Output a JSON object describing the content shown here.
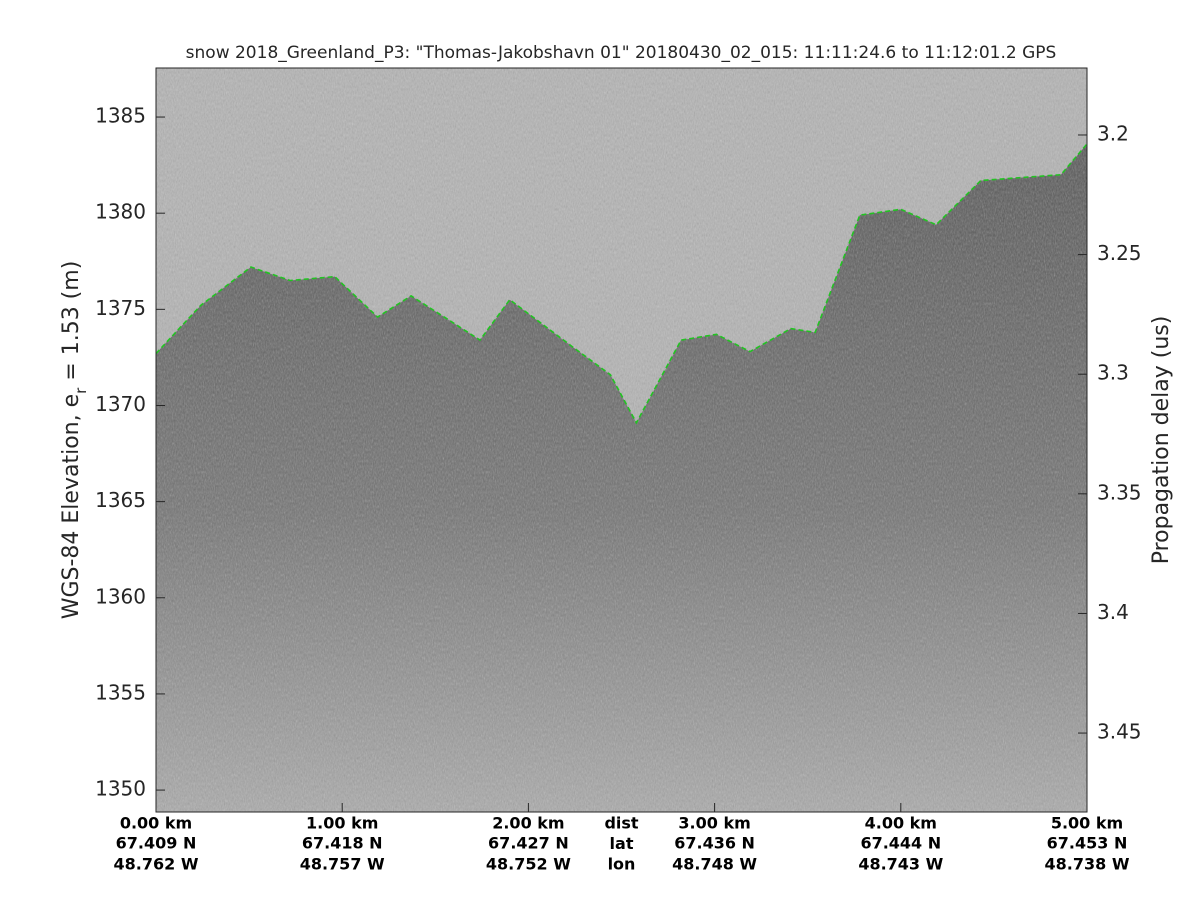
{
  "chart_data": {
    "type": "echogram",
    "title": "snow 2018_Greenland_P3: \"Thomas-Jakobshavn 01\"  20180430_02_015: 11:11:24.6 to 11:12:01.2 GPS",
    "ylabel": {
      "text": "WGS-84 Elevation, e",
      "sub": "r",
      "tail": " = 1.53 (m)"
    },
    "y2label": "Propagation delay (us)",
    "xlim": [
      0,
      5
    ],
    "xticks": [
      {
        "value": 0,
        "label": "0.00 km"
      },
      {
        "value": 1,
        "label": "1.00 km"
      },
      {
        "value": 2,
        "label": "2.00 km"
      },
      {
        "value": 3,
        "label": "3.00 km"
      },
      {
        "value": 4,
        "label": "4.00 km"
      },
      {
        "value": 5,
        "label": "5.00 km"
      }
    ],
    "xtick_lat": [
      "67.409 N",
      "67.418 N",
      "67.427 N",
      "67.436 N",
      "67.444 N",
      "67.453 N"
    ],
    "xtick_lon": [
      "48.762 W",
      "48.757 W",
      "48.752 W",
      "48.748 W",
      "48.743 W",
      "48.738 W"
    ],
    "row_labels": [
      "dist",
      "lat",
      "lon"
    ],
    "ylim": [
      1348.86,
      1387.55
    ],
    "yticks": [
      1350,
      1355,
      1360,
      1365,
      1370,
      1375,
      1380,
      1385
    ],
    "y2lim": [
      3.483,
      3.172
    ],
    "y2ticks": [
      3.2,
      3.25,
      3.3,
      3.35,
      3.4,
      3.45
    ],
    "color": "#22c322",
    "x": [
      0,
      0.24,
      0.51,
      0.72,
      0.96,
      1.19,
      1.37,
      1.58,
      1.74,
      1.9,
      2.23,
      2.44,
      2.58,
      2.82,
      3.01,
      3.19,
      3.41,
      3.54,
      3.78,
      4.0,
      4.19,
      4.43,
      4.86,
      5.0
    ],
    "values": [
      1372.7,
      1375.2,
      1377.2,
      1376.5,
      1376.7,
      1374.6,
      1375.7,
      1374.4,
      1373.4,
      1375.5,
      1373.1,
      1371.6,
      1369.1,
      1373.4,
      1373.7,
      1372.8,
      1374.0,
      1373.8,
      1379.9,
      1380.2,
      1379.4,
      1381.7,
      1382.0,
      1383.6
    ]
  }
}
